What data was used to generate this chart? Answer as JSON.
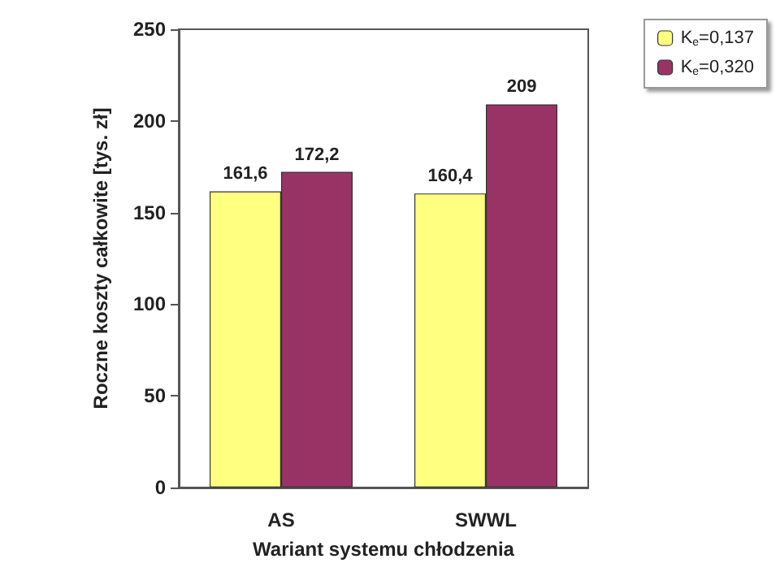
{
  "chart_data": {
    "type": "bar",
    "xlabel": "Wariant systemu chłodzenia",
    "ylabel": "Roczne koszty całkowite [tys. zł]",
    "categories": [
      "AS",
      "SWWL"
    ],
    "series": [
      {
        "name": "K$_{e}$=0,137",
        "color": "#ffff80",
        "values": [
          161.6,
          160.4
        ],
        "value_labels": [
          "161,6",
          "160,4"
        ]
      },
      {
        "name": "K$_{e}$=0,320",
        "color": "#993366",
        "values": [
          172.2,
          209
        ],
        "value_labels": [
          "172,2",
          "209"
        ]
      }
    ],
    "ylim": [
      0,
      250
    ],
    "yticks": [
      0,
      50,
      100,
      150,
      200,
      250
    ],
    "grid": false,
    "legend": "top right"
  }
}
